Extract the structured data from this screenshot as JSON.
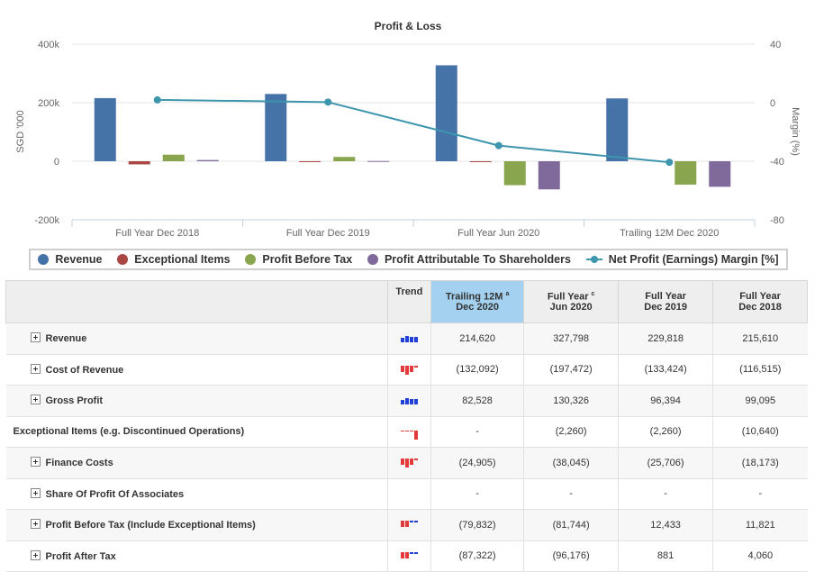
{
  "chart_data": {
    "type": "bar",
    "title": "Profit & Loss",
    "ylabel": "SGD '000",
    "y2label": "Margin (%)",
    "ylim": [
      -200000,
      400000
    ],
    "y2lim": [
      -80,
      40
    ],
    "yticks": [
      "400k",
      "200k",
      "0",
      "-200k"
    ],
    "y2ticks": [
      "40",
      "0",
      "-40",
      "-80"
    ],
    "categories": [
      "Full Year Dec 2018",
      "Full Year Dec 2019",
      "Full Year Jun 2020",
      "Trailing 12M Dec 2020"
    ],
    "series": [
      {
        "name": "Revenue",
        "type": "bar",
        "color": "#4572a7",
        "values": [
          215610,
          229818,
          327798,
          214620
        ]
      },
      {
        "name": "Exceptional Items",
        "type": "bar",
        "color": "#aa4643",
        "values": [
          -10640,
          -2260,
          -2260,
          0
        ]
      },
      {
        "name": "Profit Before Tax",
        "type": "bar",
        "color": "#89a54e",
        "values": [
          22461,
          14693,
          -81744,
          -79832
        ]
      },
      {
        "name": "Profit Attributable To Shareholders",
        "type": "bar",
        "color": "#80699b",
        "values": [
          4060,
          881,
          -96176,
          -87322
        ]
      },
      {
        "name": "Net Profit (Earnings) Margin [%]",
        "type": "line",
        "axis": "right",
        "color": "#3d96ae",
        "values": [
          1.9,
          0.4,
          -29.3,
          -40.7
        ]
      }
    ],
    "grid": true,
    "legend": "bottom"
  },
  "table": {
    "headers": {
      "trend": "Trend",
      "cols": [
        {
          "line1": "Trailing 12M",
          "sup": "a",
          "line2": "Dec 2020"
        },
        {
          "line1": "Full Year",
          "sup": "c",
          "line2": "Jun 2020"
        },
        {
          "line1": "Full Year",
          "sup": "",
          "line2": "Dec 2019"
        },
        {
          "line1": "Full Year",
          "sup": "",
          "line2": "Dec 2018"
        }
      ]
    },
    "rows": [
      {
        "label": "Revenue",
        "expand": true,
        "trend": "blue",
        "values": [
          "214,620",
          "327,798",
          "229,818",
          "215,610"
        ]
      },
      {
        "label": "Cost of Revenue",
        "expand": true,
        "trend": "red-mix",
        "values": [
          "(132,092)",
          "(197,472)",
          "(133,424)",
          "(116,515)"
        ]
      },
      {
        "label": "Gross Profit",
        "expand": true,
        "trend": "blue",
        "values": [
          "82,528",
          "130,326",
          "96,394",
          "99,095"
        ]
      },
      {
        "label": "Exceptional Items (e.g. Discontinued Operations)",
        "expand": false,
        "trend": "red-last",
        "values": [
          "-",
          "(2,260)",
          "(2,260)",
          "(10,640)"
        ]
      },
      {
        "label": "Finance Costs",
        "expand": true,
        "trend": "red-mix",
        "values": [
          "(24,905)",
          "(38,045)",
          "(25,706)",
          "(18,173)"
        ]
      },
      {
        "label": "Share Of Profit Of Associates",
        "expand": true,
        "trend": "none",
        "values": [
          "-",
          "-",
          "-",
          "-"
        ]
      },
      {
        "label": "Profit Before Tax (Include Exceptional Items)",
        "expand": true,
        "trend": "red-blue",
        "values": [
          "(79,832)",
          "(81,744)",
          "12,433",
          "11,821"
        ]
      },
      {
        "label": "Profit After Tax",
        "expand": true,
        "trend": "red-blue",
        "values": [
          "(87,322)",
          "(96,176)",
          "881",
          "4,060"
        ]
      }
    ]
  }
}
